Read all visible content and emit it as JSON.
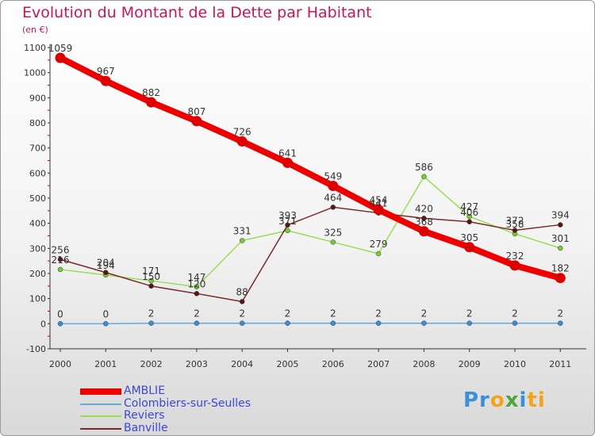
{
  "chart_data": {
    "type": "line",
    "title": "Evolution du Montant de la Dette par Habitant",
    "subtitle": "(en €)",
    "x": [
      "2000",
      "2001",
      "2002",
      "2003",
      "2004",
      "2005",
      "2006",
      "2007",
      "2008",
      "2009",
      "2010",
      "2011"
    ],
    "ylim": [
      -100,
      1100
    ],
    "yticks": [
      "-100",
      "0",
      "100",
      "200",
      "300",
      "400",
      "500",
      "600",
      "700",
      "800",
      "900",
      "1000",
      "1100"
    ],
    "grid": false,
    "legend_position": "bottom-left",
    "series": [
      {
        "name": "AMBLIE",
        "color": "#ee0000",
        "values": [
          1059,
          967,
          882,
          807,
          726,
          641,
          549,
          454,
          368,
          305,
          232,
          182
        ],
        "labels": [
          "1059",
          "967",
          "882",
          "807",
          "726",
          "641",
          "549",
          "454",
          "368",
          "305",
          "232",
          "182"
        ]
      },
      {
        "name": "Colombiers-sur-Seulles",
        "color": "#6aa9d6",
        "values": [
          0,
          0,
          2,
          2,
          2,
          2,
          2,
          2,
          2,
          2,
          2,
          2
        ],
        "labels": [
          "0",
          "0",
          "2",
          "2",
          "2",
          "2",
          "2",
          "2",
          "2",
          "2",
          "2",
          "2"
        ]
      },
      {
        "name": "Reviers",
        "color": "#99dd55",
        "values": [
          216,
          194,
          171,
          147,
          331,
          371,
          325,
          279,
          586,
          427,
          358,
          301
        ],
        "labels": [
          "216",
          "194",
          "171",
          "147",
          "331",
          "371",
          "325",
          "279",
          "586",
          "427",
          "358",
          "301"
        ]
      },
      {
        "name": "Banville",
        "color": "#7a2a2a",
        "values": [
          256,
          204,
          150,
          120,
          88,
          393,
          464,
          441,
          420,
          406,
          372,
          394
        ],
        "labels": [
          "256",
          "204",
          "150",
          "120",
          "88",
          "393",
          "464",
          "441",
          "420",
          "406",
          "372",
          "394"
        ]
      }
    ]
  },
  "logo": {
    "parts": [
      {
        "text": "Pr",
        "color": "#3b8fd6"
      },
      {
        "text": "o",
        "color": "#f2a31b"
      },
      {
        "text": "x",
        "color": "#4aa83a"
      },
      {
        "text": "i",
        "color": "#3b8fd6"
      },
      {
        "text": "ti",
        "color": "#f2a31b"
      }
    ]
  }
}
